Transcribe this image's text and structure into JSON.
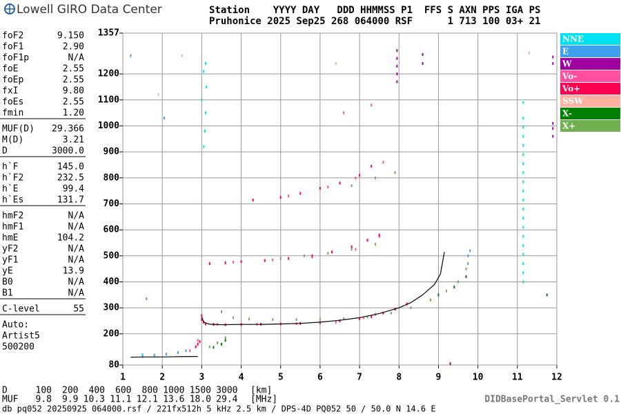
{
  "logo": "Lowell GIRO Data Center",
  "header": {
    "line1": "Station    YYYY DAY   DDD HHMMSS P1  FFS S AXN PPS IGA PS",
    "line2": "Pruhonice 2025 Sep25 268 064000 RSF      1 713 100 03+ 21"
  },
  "parameters": [
    [
      [
        "foF2",
        "9.150"
      ],
      [
        "foF1",
        "2.90"
      ],
      [
        "foF1p",
        "N/A"
      ],
      [
        "foE",
        "2.55"
      ],
      [
        "foEp",
        "2.55"
      ],
      [
        "fxI",
        "9.80"
      ],
      [
        "foEs",
        "2.55"
      ],
      [
        "fmin",
        "1.20"
      ]
    ],
    [
      [
        "MUF(D)",
        "29.366"
      ],
      [
        "M(D)",
        "3.21"
      ],
      [
        "D",
        "3000.0"
      ]
    ],
    [
      [
        "h`F",
        "145.0"
      ],
      [
        "h`F2",
        "232.5"
      ],
      [
        "h`E",
        "99.4"
      ],
      [
        "h`Es",
        "131.7"
      ]
    ],
    [
      [
        "hmF2",
        "N/A"
      ],
      [
        "hmF1",
        "N/A"
      ],
      [
        "hmE",
        "104.2"
      ],
      [
        "yF2",
        "N/A"
      ],
      [
        "yF1",
        "N/A"
      ],
      [
        "yE",
        "13.9"
      ],
      [
        "B0",
        "N/A"
      ],
      [
        "B1",
        "N/A"
      ]
    ],
    [
      [
        "C-level",
        "55"
      ]
    ]
  ],
  "auto": [
    "Auto:",
    "Artist5",
    "500200"
  ],
  "distance_table": {
    "D": {
      "label": "D",
      "values": [
        "100",
        "200",
        "400",
        "600",
        "800",
        "1000",
        "1500",
        "3000"
      ],
      "unit": "[km]"
    },
    "MUF": {
      "label": "MUF",
      "values": [
        "9.8",
        "9.9",
        "10.3",
        "11.1",
        "12.1",
        "13.6",
        "18.0",
        "29.4"
      ],
      "unit": "[MHz]"
    }
  },
  "footer": "db pq052 20250925 064000.rsf / 221fx512h 5 kHz 2.5 km / DPS-4D PQ052 50 / 50.0 N 14.6 E",
  "servlet": "DIDBasePortal_Servlet 0.1",
  "chart_data": {
    "type": "scatter",
    "xlim": [
      1,
      12
    ],
    "xticks": [
      1,
      2,
      3,
      4,
      5,
      6,
      7,
      8,
      9,
      10,
      11,
      12
    ],
    "ylim": [
      80,
      1357
    ],
    "yticks": [
      80,
      200,
      300,
      400,
      500,
      600,
      700,
      800,
      900,
      1000,
      1100,
      1200,
      1357
    ],
    "grid": true,
    "series": [
      {
        "name": "NNE",
        "color": "#00e0f0",
        "x": [
          11.15,
          11.15,
          11.15,
          11.15,
          11.15,
          11.15,
          11.15,
          11.15,
          11.15,
          11.15,
          11.15,
          11.15,
          11.15,
          11.15,
          11.15,
          11.15,
          11.15,
          11.15,
          11.15,
          11.15,
          3.05,
          3.08,
          3.1,
          3.0,
          3.12,
          3.05,
          3.1,
          1.5
        ],
        "y": [
          400,
          435,
          470,
          505,
          540,
          575,
          610,
          645,
          680,
          715,
          750,
          785,
          820,
          855,
          890,
          925,
          960,
          995,
          1030,
          1090,
          920,
          980,
          1050,
          1100,
          1150,
          1210,
          1240,
          120
        ]
      },
      {
        "name": "E",
        "color": "#40a0f0",
        "x": [
          1.5,
          1.8,
          2.1,
          2.4,
          2.6,
          9.75,
          9.75,
          9.8,
          2.05,
          1.6,
          1.2
        ],
        "y": [
          113,
          118,
          122,
          128,
          135,
          470,
          500,
          520,
          1030,
          335,
          1270
        ]
      },
      {
        "name": "W",
        "color": "#a000a0",
        "x": [
          7.95,
          7.95,
          7.95,
          7.95,
          7.95,
          8.6,
          8.6,
          11.9,
          11.9,
          11.9,
          11.9,
          11.9,
          9.3
        ],
        "y": [
          1170,
          1200,
          1230,
          1260,
          1290,
          1240,
          1275,
          960,
          990,
          1010,
          1240,
          1265,
          85
        ]
      },
      {
        "name": "Vo-",
        "color": "#ff50a0",
        "x": [
          2.7,
          2.9,
          3.4,
          4.4,
          5.4,
          6.4,
          7.1,
          7.4,
          3.8,
          4.8,
          5.8,
          6.9,
          7.5,
          5.2,
          6.2,
          6.9,
          7.6,
          6.6,
          7.3
        ],
        "y": [
          135,
          175,
          236,
          237,
          239,
          244,
          262,
          275,
          476,
          484,
          496,
          525,
          575,
          730,
          765,
          800,
          860,
          1050,
          1080
        ]
      },
      {
        "name": "Vo+",
        "color": "#ff0050",
        "x": [
          2.85,
          2.9,
          2.95,
          3.0,
          3.0,
          3.05,
          3.1,
          3.3,
          3.6,
          4.0,
          4.5,
          5.0,
          5.5,
          6.0,
          6.5,
          7.0,
          7.3,
          7.6,
          7.9,
          8.2,
          3.2,
          3.6,
          4.0,
          4.6,
          5.2,
          5.8,
          6.3,
          6.8,
          7.2,
          7.5,
          4.3,
          5.0,
          5.5,
          6.0,
          6.5,
          7.0,
          7.3
        ],
        "y": [
          150,
          160,
          170,
          255,
          270,
          245,
          238,
          236,
          235,
          236,
          237,
          238,
          240,
          243,
          250,
          258,
          266,
          280,
          295,
          315,
          470,
          473,
          478,
          482,
          490,
          500,
          515,
          535,
          560,
          580,
          715,
          725,
          740,
          760,
          780,
          810,
          845
        ]
      },
      {
        "name": "SSW",
        "color": "#ffb0a0",
        "x": [
          2.5,
          6.4,
          11.3,
          1.9
        ],
        "y": [
          1270,
          1240,
          1280,
          1120
        ]
      },
      {
        "name": "X-",
        "color": "#008000",
        "x": [
          3.3,
          3.5,
          3.6,
          9.0,
          9.4,
          9.7,
          11.75
        ],
        "y": [
          148,
          160,
          175,
          350,
          380,
          420,
          350
        ]
      },
      {
        "name": "X+",
        "color": "#70b050",
        "x": [
          3.2,
          3.4,
          3.6,
          3.5,
          3.8,
          4.2,
          4.8,
          5.4,
          6.0,
          6.6,
          7.2,
          7.8,
          8.3,
          8.8,
          9.2,
          9.5,
          9.7,
          5.0,
          5.6,
          6.2,
          6.8,
          7.4,
          6.8,
          7.4,
          7.9
        ],
        "y": [
          150,
          165,
          185,
          285,
          262,
          257,
          255,
          255,
          256,
          258,
          265,
          280,
          300,
          330,
          365,
          400,
          450,
          490,
          500,
          510,
          525,
          545,
          770,
          800,
          820
        ]
      }
    ],
    "trace": {
      "color": "#000000",
      "x": [
        1.2,
        1.6,
        2.0,
        2.4,
        2.8,
        2.9,
        null,
        3.0,
        3.05,
        3.2,
        3.5,
        4.0,
        4.5,
        5.0,
        5.5,
        6.0,
        6.5,
        7.0,
        7.5,
        8.0,
        8.3,
        8.6,
        8.9,
        9.05,
        9.15
      ],
      "y": [
        110,
        111,
        111,
        112,
        113,
        113,
        null,
        265,
        245,
        237,
        235,
        236,
        236,
        238,
        240,
        245,
        252,
        262,
        278,
        300,
        320,
        350,
        390,
        430,
        515
      ]
    }
  }
}
